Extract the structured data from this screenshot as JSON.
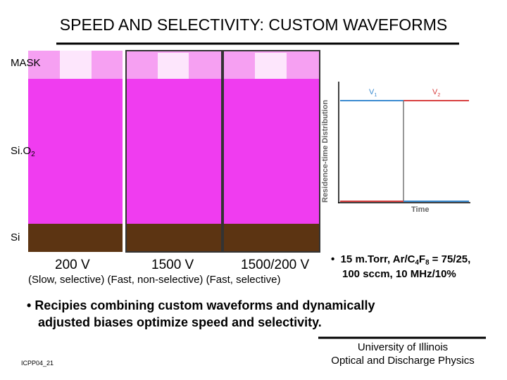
{
  "header": {
    "title": "SPEED AND SELECTIVITY: CUSTOM WAVEFORMS"
  },
  "layers": {
    "mask": "MASK",
    "oxide": {
      "main": "Si.O",
      "sub": "2"
    },
    "substrate": "Si"
  },
  "panels": [
    {
      "label": "200 V"
    },
    {
      "label": "1500 V"
    },
    {
      "label": "1500/200 V"
    }
  ],
  "panel_caption": "(Slow, selective) (Fast, non-selective) (Fast, selective)",
  "inset": {
    "y_label": "Residence-time Distribution",
    "x_label": "Time",
    "v1": {
      "main": "V",
      "sub": "1"
    },
    "v2": {
      "main": "V",
      "sub": "2"
    }
  },
  "conditions": {
    "line1": [
      "15 m.Torr, Ar/C",
      "4",
      "F",
      "8",
      " = 75/25,"
    ],
    "line2": "100 sccm, 10 MHz/10%"
  },
  "bullet": {
    "line1": "Recipies combining custom waveforms and dynamically",
    "line2": "adjusted biases optimize speed and selectivity."
  },
  "footer": {
    "code": "ICPP04_21",
    "org1": "University of Illinois",
    "org2": "Optical and Discharge Physics"
  }
}
